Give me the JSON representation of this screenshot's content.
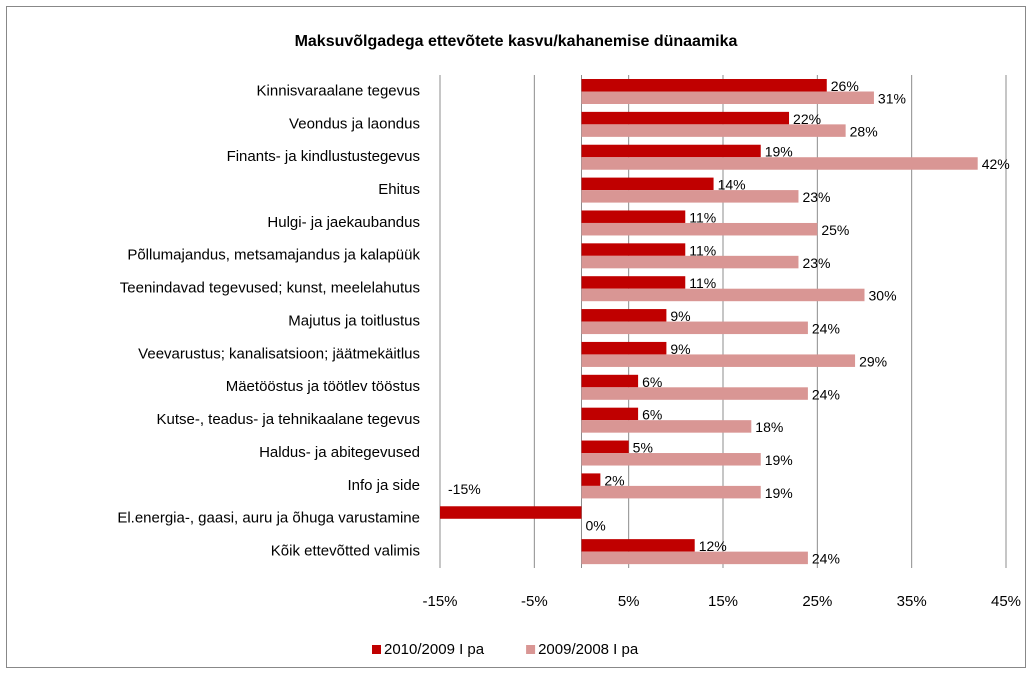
{
  "chart_data": {
    "type": "hbar",
    "title": "Maksuvõlgadega ettevõtete kasvu/kahanemise dünaamika",
    "categories": [
      "Kinnisvaraalane tegevus",
      "Veondus ja laondus",
      "Finants- ja kindlustustegevus",
      "Ehitus",
      "Hulgi- ja jaekaubandus",
      "Põllumajandus, metsamajandus ja kalapüük",
      "Teenindavad tegevused; kunst, meelelahutus",
      "Majutus ja toitlustus",
      "Veevarustus; kanalisatsioon; jäätmekäitlus",
      "Mäetööstus ja töötlev tööstus",
      "Kutse-, teadus- ja tehnikaalane tegevus",
      "Haldus- ja abitegevused",
      "Info ja side",
      "El.energia-, gaasi, auru ja õhuga varustamine",
      "Kõik ettevõtted valimis"
    ],
    "series": [
      {
        "name": "2010/2009 I pa",
        "color": "#c00000",
        "values": [
          26,
          22,
          19,
          14,
          11,
          11,
          11,
          9,
          9,
          6,
          6,
          5,
          2,
          -15,
          12
        ],
        "value_labels": [
          "26%",
          "22%",
          "19%",
          "14%",
          "11%",
          "11%",
          "11%",
          "9%",
          "9%",
          "6%",
          "6%",
          "5%",
          "2%",
          "-15%",
          "12%"
        ]
      },
      {
        "name": "2009/2008 I pa",
        "color": "#d99694",
        "values": [
          31,
          28,
          42,
          23,
          25,
          23,
          30,
          24,
          29,
          24,
          18,
          19,
          19,
          0,
          24
        ],
        "value_labels": [
          "31%",
          "28%",
          "42%",
          "23%",
          "25%",
          "23%",
          "30%",
          "24%",
          "29%",
          "24%",
          "18%",
          "19%",
          "19%",
          "0%",
          "24%"
        ]
      }
    ],
    "xlim": [
      -15,
      45
    ],
    "xticks": [
      {
        "value": -15,
        "label": "-15%"
      },
      {
        "value": -5,
        "label": "-5%"
      },
      {
        "value": 5,
        "label": "5%"
      },
      {
        "value": 15,
        "label": "15%"
      },
      {
        "value": 25,
        "label": "25%"
      },
      {
        "value": 35,
        "label": "35%"
      },
      {
        "value": 45,
        "label": "45%"
      }
    ],
    "grid": true,
    "legend": "bottom"
  }
}
